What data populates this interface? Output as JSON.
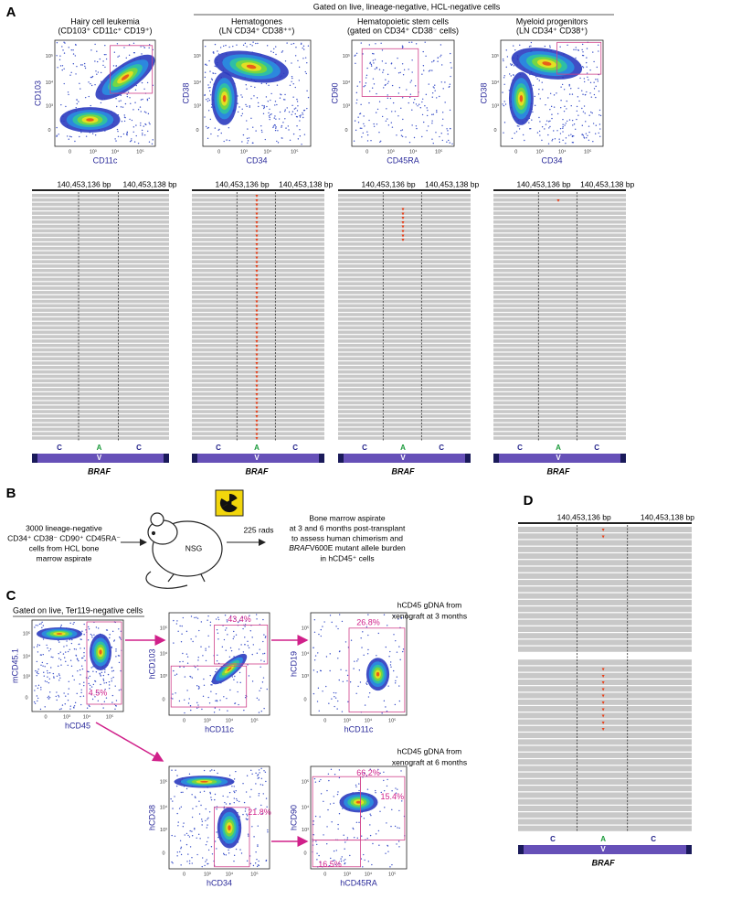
{
  "panel_a": {
    "label": "A",
    "gate_header": "Gated on live, lineage-negative, HCL-negative cells",
    "columns": [
      {
        "title": "Hairy cell leukemia",
        "subtitle": "(CD103⁺ CD11c⁺ CD19⁺)",
        "y_label": "CD103",
        "x_label": "CD11c"
      },
      {
        "title": "Hematogones",
        "subtitle": "(LN CD34⁺ CD38⁺⁺)",
        "y_label": "CD38",
        "x_label": "CD34"
      },
      {
        "title": "Hematopoietic stem cells",
        "subtitle": "(gated on CD34⁺ CD38⁻ cells)",
        "y_label": "CD90",
        "x_label": "CD45RA"
      },
      {
        "title": "Myeloid progenitors",
        "subtitle": "(LN CD34⁺ CD38⁺)",
        "y_label": "CD38",
        "x_label": "CD34"
      }
    ],
    "coord_left": "140,453,136 bp",
    "coord_right": "140,453,138 bp",
    "bases": [
      "C",
      "A",
      "C"
    ],
    "codon": "V",
    "gene": "BRAF"
  },
  "flow_ticks": [
    "0",
    "10³",
    "10⁴",
    "10⁵"
  ],
  "panel_b": {
    "label": "B",
    "input_lines": [
      "3000 lineage-negative",
      "CD34⁺ CD38⁻ CD90⁺ CD45RA⁻",
      "cells from HCL bone",
      "marrow aspirate"
    ],
    "mouse": "NSG",
    "dose": "225 rads",
    "output_lines": [
      "Bone marrow aspirate",
      "at 3 and 6 months post-transplant",
      "to assess human chimerism and"
    ],
    "output_gene": "BRAF",
    "output_gene_rest": "V600E mutant allele burden",
    "output_last": "in hCD45⁺ cells"
  },
  "panel_c": {
    "label": "C",
    "gate_header": "Gated on live, Ter119-negative cells",
    "plots": [
      {
        "y_label": "mCD45.1",
        "x_label": "hCD45",
        "gates": [
          "4.5%"
        ]
      },
      {
        "y_label": "hCD103",
        "x_label": "hCD11c",
        "gates": [
          "43.4%"
        ]
      },
      {
        "y_label": "hCD19",
        "x_label": "hCD11c",
        "gates": [
          "26.8%"
        ]
      },
      {
        "y_label": "hCD38",
        "x_label": "hCD34",
        "gates": [
          "21.8%"
        ]
      },
      {
        "y_label": "hCD90",
        "x_label": "hCD45RA",
        "gates": [
          "66.2%",
          "15.4%",
          "16.5%"
        ]
      }
    ]
  },
  "panel_d": {
    "label": "D",
    "coord_left": "140,453,136 bp",
    "coord_right": "140,453,138 bp",
    "sample_3m": [
      "hCD45 gDNA from",
      "xenograft at 3 months"
    ],
    "sample_6m": [
      "hCD45 gDNA from",
      "xenograft at 6 months"
    ],
    "bases": [
      "C",
      "A",
      "C"
    ],
    "codon": "V",
    "gene": "BRAF"
  }
}
